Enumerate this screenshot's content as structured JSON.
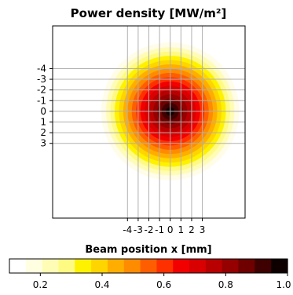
{
  "chart_data": {
    "type": "heatmap",
    "title": "Power density [MW/m²]",
    "xlabel": "Beam position x  [mm]",
    "ylabel": "",
    "x_ticks": [
      -4,
      -3,
      -2,
      -1,
      0,
      1,
      2,
      3
    ],
    "x_tick_labels": [
      "-4",
      "-3",
      "-2",
      "-1",
      "0",
      "1",
      "2",
      "3"
    ],
    "y_ticks": [
      -4,
      -3,
      -2,
      -1,
      0,
      1,
      2,
      3
    ],
    "y_tick_labels": [
      "-4",
      "-3",
      "-2",
      "-1",
      "0",
      "1",
      "2",
      "3"
    ],
    "xlim": [
      -11,
      7
    ],
    "ylim": [
      10,
      -8
    ],
    "y_inverted": true,
    "grid": true,
    "center": {
      "x": 0,
      "y": 0
    },
    "rings": [
      {
        "level": 0.1,
        "radius": 6.45,
        "color": "#fffce8"
      },
      {
        "level": 0.2,
        "radius": 6.0,
        "color": "#fffcb6"
      },
      {
        "level": 0.25,
        "radius": 5.6,
        "color": "#fffa82"
      },
      {
        "level": 0.3,
        "radius": 5.2,
        "color": "#fff200"
      },
      {
        "level": 0.4,
        "radius": 4.8,
        "color": "#ffd500"
      },
      {
        "level": 0.45,
        "radius": 4.4,
        "color": "#ffae00"
      },
      {
        "level": 0.5,
        "radius": 4.0,
        "color": "#ff8c00"
      },
      {
        "level": 0.6,
        "radius": 3.6,
        "color": "#ff5e00"
      },
      {
        "level": 0.65,
        "radius": 3.2,
        "color": "#ff3000"
      },
      {
        "level": 0.7,
        "radius": 2.8,
        "color": "#f20000"
      },
      {
        "level": 0.75,
        "radius": 2.4,
        "color": "#d80000"
      },
      {
        "level": 0.8,
        "radius": 2.0,
        "color": "#b80000"
      },
      {
        "level": 0.85,
        "radius": 1.6,
        "color": "#950000"
      },
      {
        "level": 0.9,
        "radius": 1.2,
        "color": "#6e0000"
      },
      {
        "level": 0.95,
        "radius": 0.8,
        "color": "#3e0000"
      },
      {
        "level": 1.0,
        "radius": 0.4,
        "color": "#0e0000"
      }
    ],
    "colorbar": {
      "min": 0.1,
      "max": 1.0,
      "ticks": [
        0.2,
        0.4,
        0.6,
        0.8,
        1.0
      ],
      "tick_labels": [
        "0.2",
        "0.4",
        "0.6",
        "0.8",
        "1.0"
      ],
      "colors": [
        "#ffffff",
        "#fffee0",
        "#fffcb6",
        "#fffa82",
        "#fff200",
        "#ffd500",
        "#ffae00",
        "#ff8c00",
        "#ff5e00",
        "#ff3000",
        "#f20000",
        "#d80000",
        "#b80000",
        "#950000",
        "#6e0000",
        "#3e0000",
        "#0e0000"
      ]
    }
  }
}
